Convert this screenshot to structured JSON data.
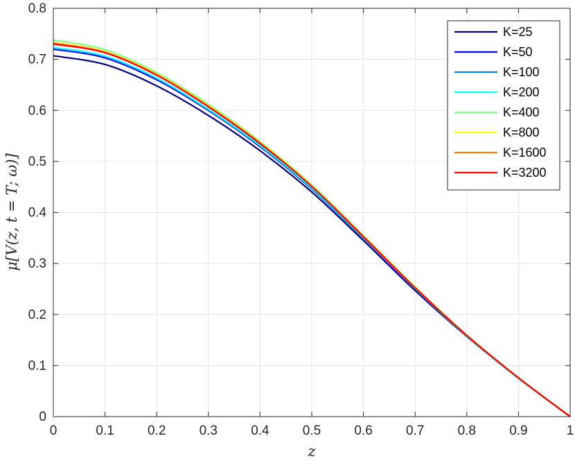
{
  "chart_data": {
    "type": "line",
    "title": "",
    "xlabel": "z",
    "ylabel": "μ[V(z, t = T; ω)]",
    "xlim": [
      0,
      1
    ],
    "ylim": [
      0,
      0.8
    ],
    "xticks": [
      "0",
      "0.1",
      "0.2",
      "0.3",
      "0.4",
      "0.5",
      "0.6",
      "0.7",
      "0.8",
      "0.9",
      "1"
    ],
    "yticks": [
      "0",
      "0.1",
      "0.2",
      "0.3",
      "0.4",
      "0.5",
      "0.6",
      "0.7",
      "0.8"
    ],
    "grid": true,
    "legend_position": "top-right",
    "x": [
      0,
      0.1,
      0.2,
      0.3,
      0.4,
      0.5,
      0.6,
      0.7,
      0.8,
      0.9,
      1.0
    ],
    "series": [
      {
        "name": "K=25",
        "color": "#000080",
        "values": [
          0.707,
          0.69,
          0.648,
          0.59,
          0.521,
          0.44,
          0.345,
          0.247,
          0.157,
          0.075,
          0.0
        ]
      },
      {
        "name": "K=50",
        "color": "#0000ff",
        "values": [
          0.72,
          0.703,
          0.66,
          0.6,
          0.529,
          0.446,
          0.349,
          0.25,
          0.158,
          0.075,
          0.0
        ]
      },
      {
        "name": "K=100",
        "color": "#0080ff",
        "values": [
          0.723,
          0.706,
          0.663,
          0.602,
          0.531,
          0.447,
          0.35,
          0.251,
          0.158,
          0.075,
          0.0
        ]
      },
      {
        "name": "K=200",
        "color": "#00ffff",
        "values": [
          0.723,
          0.706,
          0.663,
          0.602,
          0.531,
          0.448,
          0.35,
          0.251,
          0.158,
          0.075,
          0.0
        ]
      },
      {
        "name": "K=400",
        "color": "#80ff80",
        "values": [
          0.738,
          0.719,
          0.674,
          0.612,
          0.539,
          0.454,
          0.355,
          0.254,
          0.16,
          0.076,
          0.0
        ]
      },
      {
        "name": "K=800",
        "color": "#ffff00",
        "values": [
          0.733,
          0.715,
          0.671,
          0.609,
          0.537,
          0.452,
          0.353,
          0.253,
          0.159,
          0.076,
          0.0
        ]
      },
      {
        "name": "K=1600",
        "color": "#ff8000",
        "values": [
          0.732,
          0.714,
          0.67,
          0.608,
          0.536,
          0.451,
          0.353,
          0.253,
          0.159,
          0.076,
          0.0
        ]
      },
      {
        "name": "K=3200",
        "color": "#ff0000",
        "values": [
          0.73,
          0.713,
          0.669,
          0.607,
          0.535,
          0.451,
          0.352,
          0.252,
          0.159,
          0.076,
          0.0
        ]
      }
    ]
  }
}
